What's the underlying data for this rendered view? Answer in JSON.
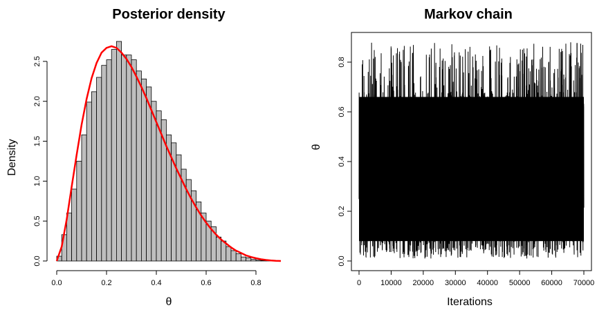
{
  "chart_data": [
    {
      "type": "bar",
      "title": "Posterior density",
      "xlabel": "θ",
      "ylabel": "Density",
      "xlim": [
        0,
        0.9
      ],
      "ylim": [
        0,
        2.75
      ],
      "x_ticks": [
        "0.0",
        "0.2",
        "0.4",
        "0.6",
        "0.8"
      ],
      "y_ticks": [
        "0.0",
        "0.5",
        "1.0",
        "1.5",
        "2.0",
        "2.5"
      ],
      "bin_width": 0.02,
      "bin_starts": [
        0.0,
        0.02,
        0.04,
        0.06,
        0.08,
        0.1,
        0.12,
        0.14,
        0.16,
        0.18,
        0.2,
        0.22,
        0.24,
        0.26,
        0.28,
        0.3,
        0.32,
        0.34,
        0.36,
        0.38,
        0.4,
        0.42,
        0.44,
        0.46,
        0.48,
        0.5,
        0.52,
        0.54,
        0.56,
        0.58,
        0.6,
        0.62,
        0.64,
        0.66,
        0.68,
        0.7,
        0.72,
        0.74,
        0.76,
        0.78,
        0.8,
        0.82,
        0.84,
        0.86,
        0.88
      ],
      "values": [
        0.06,
        0.33,
        0.6,
        0.9,
        1.25,
        1.58,
        1.99,
        2.12,
        2.3,
        2.45,
        2.52,
        2.65,
        2.75,
        2.58,
        2.58,
        2.52,
        2.38,
        2.28,
        2.18,
        2.0,
        1.88,
        1.77,
        1.58,
        1.48,
        1.33,
        1.15,
        1.02,
        0.88,
        0.74,
        0.6,
        0.5,
        0.43,
        0.3,
        0.25,
        0.18,
        0.13,
        0.09,
        0.05,
        0.04,
        0.02,
        0.01,
        0.006,
        0.003,
        0.001,
        0.0
      ],
      "bar_fill": "#bebebe",
      "curve_color": "#ff0000",
      "curve": {
        "x": [
          0.0,
          0.02,
          0.04,
          0.06,
          0.08,
          0.1,
          0.12,
          0.14,
          0.16,
          0.18,
          0.2,
          0.22,
          0.24,
          0.26,
          0.28,
          0.3,
          0.32,
          0.34,
          0.36,
          0.38,
          0.4,
          0.42,
          0.44,
          0.46,
          0.48,
          0.5,
          0.52,
          0.54,
          0.56,
          0.58,
          0.6,
          0.62,
          0.64,
          0.66,
          0.68,
          0.7,
          0.72,
          0.74,
          0.76,
          0.78,
          0.8,
          0.82,
          0.84,
          0.86,
          0.88,
          0.9
        ],
        "y": [
          0.0,
          0.18,
          0.52,
          0.93,
          1.33,
          1.71,
          2.03,
          2.29,
          2.48,
          2.61,
          2.67,
          2.69,
          2.67,
          2.61,
          2.53,
          2.43,
          2.31,
          2.18,
          2.04,
          1.89,
          1.74,
          1.59,
          1.44,
          1.3,
          1.16,
          1.03,
          0.9,
          0.78,
          0.67,
          0.57,
          0.48,
          0.4,
          0.33,
          0.27,
          0.22,
          0.17,
          0.13,
          0.1,
          0.07,
          0.05,
          0.035,
          0.022,
          0.013,
          0.007,
          0.003,
          0.0
        ]
      }
    },
    {
      "type": "line",
      "title": "Markov chain",
      "xlabel": "Iterations",
      "ylabel": "θ",
      "xlim": [
        0,
        70000
      ],
      "ylim": [
        0,
        0.87
      ],
      "x_ticks": [
        "0",
        "10000",
        "20000",
        "30000",
        "40000",
        "50000",
        "60000",
        "70000"
      ],
      "y_ticks": [
        "0.0",
        "0.2",
        "0.4",
        "0.6",
        "0.8"
      ],
      "line_color": "#000000",
      "n_iterations": 70000,
      "band": {
        "lower_typical": 0.06,
        "upper_typical": 0.68,
        "min_value": 0.01,
        "max_value": 0.88
      }
    }
  ]
}
